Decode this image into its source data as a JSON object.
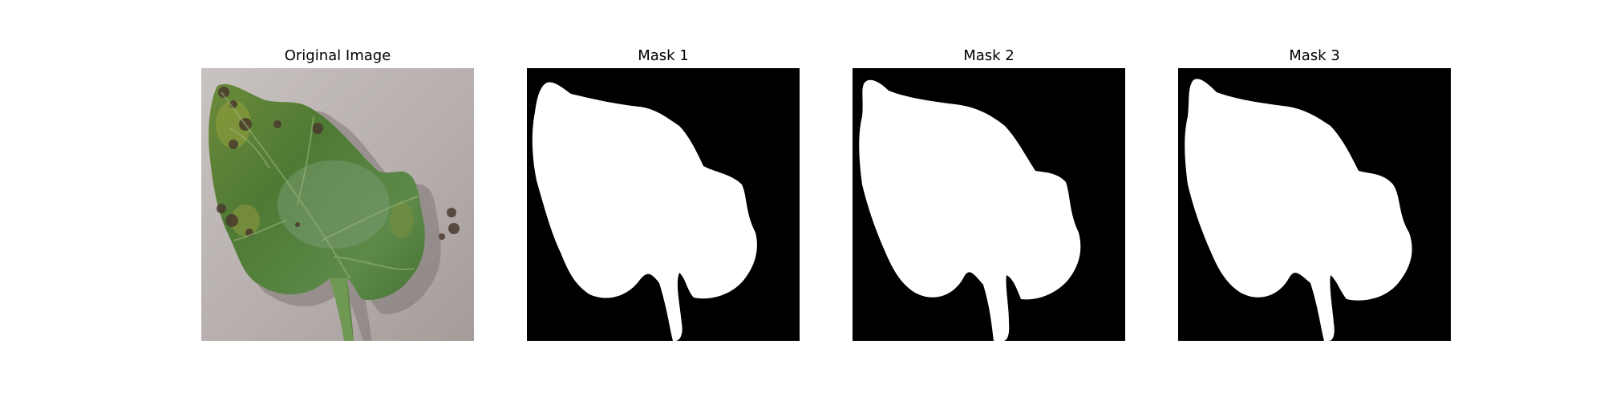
{
  "panels": [
    {
      "title": "Original Image",
      "kind": "photo"
    },
    {
      "title": "Mask 1",
      "kind": "mask"
    },
    {
      "title": "Mask 2",
      "kind": "mask"
    },
    {
      "title": "Mask 3",
      "kind": "mask"
    }
  ],
  "colors": {
    "background": "#ffffff",
    "mask_background": "#000000",
    "mask_foreground": "#ffffff",
    "leaf_green": "#4f7a3a",
    "photo_background": "#b9b2b0"
  }
}
